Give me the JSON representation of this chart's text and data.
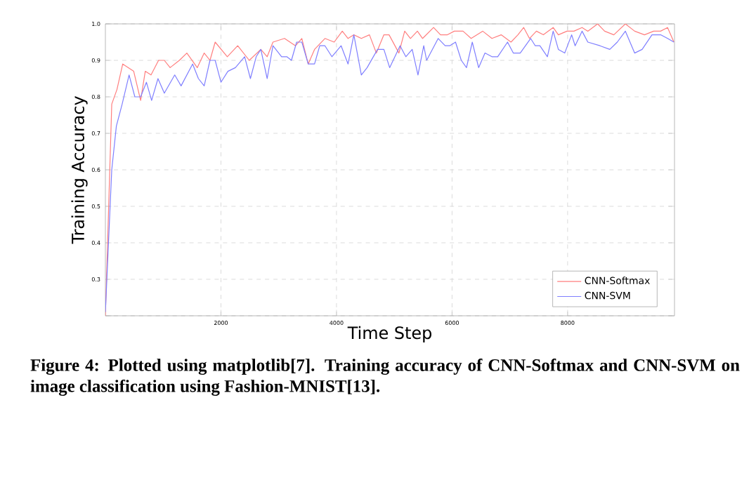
{
  "chart_data": {
    "type": "line",
    "xlabel": "Time Step",
    "ylabel": "Training Accuracy",
    "annotations": [
      "Figure 4: Plotted using matplotlib[7]. Training accuracy of CNN-Softmax and CNN-SVM on image classification using Fashion-MNIST[13]."
    ],
    "xlim": [
      0,
      9850
    ],
    "ylim": [
      0.2,
      1.0
    ],
    "xticks": [
      2000,
      4000,
      6000,
      8000
    ],
    "yticks": [
      {
        "value": 0.2,
        "label": null
      },
      0.3,
      0.4,
      0.5,
      0.6,
      0.7,
      0.8,
      0.9,
      {
        "value": 1.0,
        "label": "1.0"
      }
    ],
    "grid": true,
    "legend": "bottom right",
    "series": [
      {
        "name": "CNN-Softmax",
        "color": "#ff7f7f",
        "x": [
          0,
          110,
          200,
          300,
          490,
          610,
          690,
          790,
          920,
          1020,
          1120,
          1280,
          1410,
          1590,
          1710,
          1810,
          1900,
          2110,
          2290,
          2490,
          2690,
          2800,
          2900,
          3100,
          3290,
          3400,
          3510,
          3620,
          3800,
          3960,
          4100,
          4200,
          4300,
          4430,
          4570,
          4690,
          4820,
          4910,
          5080,
          5180,
          5280,
          5400,
          5490,
          5680,
          5800,
          5920,
          6040,
          6190,
          6330,
          6530,
          6690,
          6850,
          7020,
          7140,
          7240,
          7340,
          7460,
          7580,
          7750,
          7840,
          7990,
          8110,
          8250,
          8350,
          8520,
          8640,
          8800,
          9000,
          9160,
          9330,
          9490,
          9610,
          9730,
          9840
        ],
        "values": [
          0.2,
          0.78,
          0.82,
          0.89,
          0.87,
          0.79,
          0.87,
          0.86,
          0.9,
          0.9,
          0.88,
          0.9,
          0.92,
          0.88,
          0.92,
          0.9,
          0.95,
          0.91,
          0.94,
          0.9,
          0.93,
          0.91,
          0.95,
          0.96,
          0.94,
          0.96,
          0.89,
          0.93,
          0.96,
          0.95,
          0.98,
          0.96,
          0.97,
          0.96,
          0.97,
          0.92,
          0.97,
          0.97,
          0.92,
          0.98,
          0.96,
          0.98,
          0.96,
          0.99,
          0.97,
          0.97,
          0.98,
          0.98,
          0.96,
          0.98,
          0.96,
          0.97,
          0.95,
          0.97,
          0.99,
          0.96,
          0.98,
          0.97,
          0.99,
          0.97,
          0.98,
          0.98,
          0.99,
          0.98,
          1.0,
          0.98,
          0.97,
          1.0,
          0.98,
          0.97,
          0.98,
          0.98,
          0.99,
          0.95
        ]
      },
      {
        "name": "CNN-SVM",
        "color": "#7f7fff",
        "x": [
          0,
          110,
          190,
          290,
          410,
          510,
          610,
          710,
          800,
          910,
          1020,
          1200,
          1310,
          1510,
          1610,
          1710,
          1810,
          1900,
          2000,
          2120,
          2250,
          2410,
          2510,
          2610,
          2690,
          2800,
          2900,
          3050,
          3140,
          3220,
          3310,
          3400,
          3510,
          3620,
          3710,
          3800,
          3920,
          4080,
          4200,
          4300,
          4430,
          4530,
          4710,
          4820,
          4920,
          5100,
          5200,
          5310,
          5410,
          5510,
          5560,
          5760,
          5880,
          5960,
          6060,
          6160,
          6250,
          6350,
          6460,
          6570,
          6690,
          6790,
          6960,
          7060,
          7180,
          7360,
          7440,
          7520,
          7650,
          7750,
          7840,
          7950,
          8070,
          8130,
          8250,
          8350,
          8560,
          8730,
          8860,
          9000,
          9160,
          9290,
          9460,
          9610,
          9730,
          9840
        ],
        "values": [
          0.21,
          0.6,
          0.72,
          0.78,
          0.86,
          0.8,
          0.8,
          0.84,
          0.79,
          0.85,
          0.81,
          0.86,
          0.83,
          0.89,
          0.85,
          0.83,
          0.9,
          0.9,
          0.84,
          0.87,
          0.88,
          0.91,
          0.85,
          0.91,
          0.93,
          0.85,
          0.94,
          0.91,
          0.91,
          0.9,
          0.95,
          0.95,
          0.89,
          0.89,
          0.94,
          0.94,
          0.91,
          0.94,
          0.89,
          0.97,
          0.86,
          0.88,
          0.93,
          0.93,
          0.88,
          0.94,
          0.91,
          0.93,
          0.86,
          0.94,
          0.9,
          0.96,
          0.94,
          0.94,
          0.95,
          0.9,
          0.88,
          0.95,
          0.88,
          0.92,
          0.91,
          0.91,
          0.95,
          0.92,
          0.92,
          0.96,
          0.94,
          0.94,
          0.91,
          0.98,
          0.93,
          0.92,
          0.97,
          0.94,
          0.98,
          0.95,
          0.94,
          0.93,
          0.95,
          0.98,
          0.92,
          0.93,
          0.97,
          0.97,
          0.96,
          0.95
        ]
      }
    ]
  }
}
